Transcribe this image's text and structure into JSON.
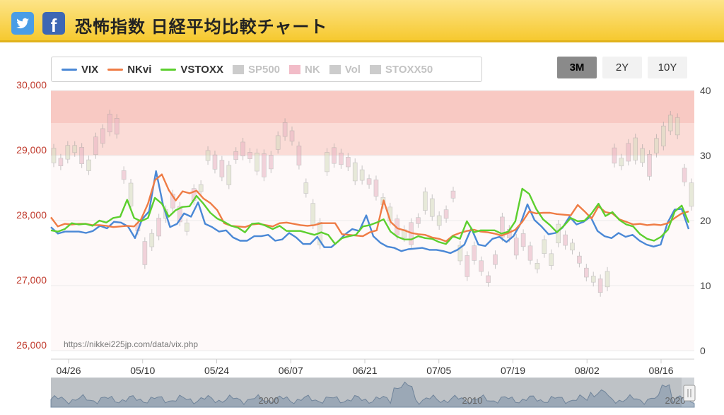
{
  "header": {
    "title": "恐怖指数 日経平均比較チャート",
    "twitter_icon": "twitter-bird-icon",
    "facebook_icon": "facebook-f-icon",
    "facebook_glyph": "f"
  },
  "legend": [
    {
      "label": "VIX",
      "color": "#4a88d6",
      "kind": "line",
      "active": true
    },
    {
      "label": "NKvi",
      "color": "#ef7c45",
      "kind": "line",
      "active": true
    },
    {
      "label": "VSTOXX",
      "color": "#5ccf2e",
      "kind": "line",
      "active": true
    },
    {
      "label": "SP500",
      "color": "#cccccc",
      "kind": "box",
      "active": false
    },
    {
      "label": "NK",
      "color": "#f2bcc8",
      "kind": "box",
      "active": false
    },
    {
      "label": "Vol",
      "color": "#cccccc",
      "kind": "box",
      "active": false
    },
    {
      "label": "STOXX50",
      "color": "#cccccc",
      "kind": "box",
      "active": false
    }
  ],
  "range_buttons": [
    {
      "label": "3M",
      "active": true
    },
    {
      "label": "2Y",
      "active": false
    },
    {
      "label": "10Y",
      "active": false
    }
  ],
  "watermark": "https://nikkei225jp.com/data/vix.php",
  "navigator": {
    "labels": [
      "2000",
      "2010",
      "2020"
    ]
  },
  "chart_data": {
    "type": "line",
    "x_tick_labels": [
      "04/26",
      "05/10",
      "05/24",
      "06/07",
      "06/21",
      "07/05",
      "07/19",
      "08/02",
      "08/16"
    ],
    "left_axis": {
      "ticks": [
        "30,000",
        "29,000",
        "28,000",
        "27,000",
        "26,000"
      ],
      "range": [
        26000,
        30000
      ]
    },
    "right_axis": {
      "ticks": [
        "40",
        "30",
        "20",
        "10",
        "0"
      ],
      "range": [
        0,
        40
      ]
    },
    "fear_bands": [
      {
        "from": 30,
        "to": 35,
        "color": "#fbdcd7"
      },
      {
        "from": 35,
        "to": 40,
        "color": "#f8c9c3"
      }
    ],
    "series": [
      {
        "name": "VIX",
        "color": "#4a88d6",
        "values": [
          19,
          18,
          18.3,
          18.3,
          18.3,
          18.1,
          18.4,
          19.2,
          18.8,
          19.8,
          19.7,
          19.1,
          17.3,
          20.2,
          21.4,
          27.6,
          22.4,
          19,
          19.5,
          21.1,
          20.6,
          22.8,
          19.5,
          19,
          18.3,
          18.5,
          17.4,
          16.9,
          16.9,
          17.6,
          17.6,
          17.8,
          16.9,
          17.1,
          18.1,
          17.4,
          16.4,
          16.4,
          17.5,
          15.9,
          15.9,
          16.8,
          17.9,
          18.7,
          18.4,
          20.8,
          17.6,
          16.6,
          16,
          15.8,
          15.3,
          15.6,
          15.7,
          15.8,
          15.5,
          15.5,
          15.3,
          15,
          15.5,
          16.3,
          18.8,
          16.3,
          16.1,
          17.2,
          17.5,
          16.7,
          17.6,
          19.5,
          22.5,
          20.1,
          19.1,
          17.9,
          18.1,
          18.9,
          20.6,
          19.4,
          19.8,
          20.6,
          18.4,
          17.6,
          17.3,
          18.1,
          17.5,
          17.8,
          16.9,
          16.3,
          16,
          16.3,
          19.7,
          21.7,
          21.8,
          18.7
        ]
      },
      {
        "name": "NKvi",
        "color": "#ef7c45",
        "values": [
          20.5,
          19.1,
          19.5,
          19.4,
          19.5,
          19.5,
          19.3,
          19.3,
          19.2,
          19,
          19.1,
          19.2,
          19.1,
          20.2,
          22.6,
          26.2,
          27.1,
          24.7,
          23.1,
          24.5,
          24.2,
          24.6,
          23.4,
          22.7,
          21.6,
          19.6,
          19.2,
          19.1,
          19,
          19.4,
          19.5,
          19.3,
          19.1,
          19.6,
          19.7,
          19.5,
          19.3,
          19.2,
          19.3,
          19.6,
          19.6,
          19.6,
          17.9,
          17.8,
          17.7,
          17.6,
          18.2,
          18.5,
          23.1,
          19.8,
          18.8,
          18.5,
          18.1,
          17.9,
          17.8,
          17.4,
          17.2,
          16.8,
          17.7,
          18.1,
          18.4,
          18.6,
          18.3,
          18.2,
          18,
          17.7,
          18.1,
          18.6,
          19.8,
          21.4,
          21.1,
          21.2,
          21.2,
          21,
          20.9,
          20.8,
          22.4,
          21.4,
          20.3,
          22.2,
          21.3,
          21.1,
          20.2,
          19.8,
          19.4,
          19.5,
          19.3,
          19.4,
          19.3,
          19.6,
          20.4,
          21.1,
          21.4
        ]
      },
      {
        "name": "VSTOXX",
        "color": "#5ccf2e",
        "values": [
          18.5,
          18.3,
          18.7,
          19.6,
          19.4,
          19.5,
          19.2,
          20,
          19.7,
          20.4,
          20.6,
          23.2,
          20.4,
          19.9,
          20.4,
          23.5,
          22.6,
          20.6,
          21.6,
          22.1,
          22.2,
          23.8,
          22.6,
          21.2,
          20.3,
          19.8,
          19.2,
          18.9,
          18.2,
          19.5,
          19.6,
          19.2,
          18.7,
          19.2,
          18.4,
          18.4,
          18.4,
          18.1,
          17.8,
          18.2,
          17.8,
          16.4,
          17.3,
          17.6,
          17.8,
          19.1,
          19.3,
          19.7,
          20.2,
          18.3,
          17.5,
          17.1,
          17.1,
          17.6,
          17.3,
          17.2,
          16.7,
          16.4,
          17.6,
          17.2,
          19.9,
          18.2,
          18.5,
          18.5,
          18.5,
          18,
          18.3,
          19.9,
          24.9,
          24.1,
          21.8,
          20.2,
          19.3,
          18.2,
          19.2,
          20.4,
          19.9,
          20,
          21.1,
          22.6,
          20.7,
          21.3,
          20.1,
          19.4,
          19.1,
          17.9,
          17.2,
          16.9,
          17.5,
          18.6,
          21.4,
          22.3,
          19.7
        ]
      }
    ],
    "grid": true,
    "legend_position": "top-left"
  }
}
